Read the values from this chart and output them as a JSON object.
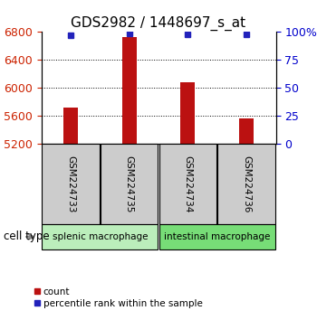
{
  "title": "GDS2982 / 1448697_s_at",
  "samples": [
    "GSM224733",
    "GSM224735",
    "GSM224734",
    "GSM224736"
  ],
  "counts": [
    5720,
    6730,
    6080,
    5570
  ],
  "percentile_ranks": [
    97,
    99,
    98,
    98
  ],
  "ylim_left": [
    5200,
    6800
  ],
  "ylim_right": [
    0,
    100
  ],
  "yticks_left": [
    5200,
    5600,
    6000,
    6400,
    6800
  ],
  "yticks_right": [
    0,
    25,
    50,
    75,
    100
  ],
  "ytick_labels_right": [
    "0",
    "25",
    "50",
    "75",
    "100%"
  ],
  "grid_lines": [
    5600,
    6000,
    6400
  ],
  "bar_color": "#BB1111",
  "percentile_color": "#2222BB",
  "bar_width": 0.25,
  "groups": [
    {
      "label": "splenic macrophage",
      "samples": [
        "GSM224733",
        "GSM224735"
      ],
      "color": "#BBEEBB"
    },
    {
      "label": "intestinal macrophage",
      "samples": [
        "GSM224734",
        "GSM224736"
      ],
      "color": "#77DD77"
    }
  ],
  "cell_type_label": "cell type",
  "legend_count_label": "count",
  "legend_percentile_label": "percentile rank within the sample",
  "left_tick_color": "#CC2200",
  "right_tick_color": "#0000CC",
  "title_fontsize": 11,
  "tick_fontsize": 9
}
